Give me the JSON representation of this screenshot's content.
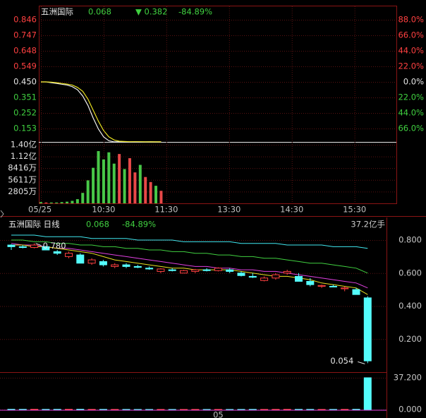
{
  "chart_data": [
    {
      "type": "line",
      "title": "五洲国际",
      "price": "0.068",
      "change": "▼ 0.382",
      "change_pct": "-84.89%",
      "x": [
        0,
        5,
        10,
        15,
        20,
        25,
        30,
        35,
        40,
        45,
        50,
        55,
        60,
        65,
        70,
        75,
        80,
        85,
        90,
        95,
        100,
        105,
        110,
        115
      ],
      "xlim": [
        -2,
        340
      ],
      "ylim": [
        0.054,
        0.846
      ],
      "yticks": [
        0.846,
        0.747,
        0.648,
        0.549,
        {
          "value": 0.45,
          "label": "0.450"
        },
        0.351,
        0.252,
        0.153
      ],
      "y2lim": [
        -88,
        88
      ],
      "y2ticks": [
        {
          "value": 88,
          "label": "88.0%"
        },
        {
          "value": 66,
          "label": "66.0%"
        },
        {
          "value": 44,
          "label": "44.0%"
        },
        {
          "value": 22,
          "label": "22.0%"
        },
        {
          "value": 0,
          "label": "0.0%"
        },
        {
          "value": -22,
          "label": "22.0%"
        },
        {
          "value": -44,
          "label": "44.0%"
        },
        {
          "value": -66,
          "label": "66.0%"
        }
      ],
      "up_color": "#ff4040",
      "flat_color": "#e8e8e8",
      "down_color": "#40d040",
      "series": [
        {
          "color": "#f0f0f0",
          "values": [
            0.45,
            0.45,
            0.445,
            0.44,
            0.435,
            0.43,
            0.42,
            0.4,
            0.36,
            0.3,
            0.22,
            0.15,
            0.1,
            0.075,
            0.068,
            0.069,
            0.068,
            0.068,
            0.069,
            0.068,
            0.068,
            0.069,
            0.068,
            0.068
          ]
        },
        {
          "color": "#e8e020",
          "values": [
            0.45,
            0.45,
            0.448,
            0.445,
            0.44,
            0.436,
            0.43,
            0.415,
            0.39,
            0.34,
            0.27,
            0.2,
            0.14,
            0.1,
            0.08,
            0.072,
            0.07,
            0.069,
            0.069,
            0.069,
            0.068,
            0.068,
            0.068,
            0.068
          ]
        }
      ]
    },
    {
      "type": "bar",
      "x": [
        0,
        5,
        10,
        15,
        20,
        25,
        30,
        35,
        40,
        45,
        50,
        55,
        60,
        65,
        70,
        75,
        80,
        85,
        90,
        95,
        100,
        105,
        110,
        115
      ],
      "xlim": [
        -2,
        340
      ],
      "xticks": [
        {
          "value": 0,
          "label": "05/25"
        },
        {
          "value": 60,
          "label": "10:30"
        },
        {
          "value": 120,
          "label": "11:30"
        },
        {
          "value": 180,
          "label": "13:30"
        },
        {
          "value": 240,
          "label": "14:30"
        },
        {
          "value": 300,
          "label": "15:30"
        }
      ],
      "ylim": [
        0,
        143500000
      ],
      "yticks": [
        {
          "value": 140000000,
          "label": "1.40亿"
        },
        {
          "value": 112000000,
          "label": "1.12亿"
        },
        {
          "value": 84160000,
          "label": "8416万"
        },
        {
          "value": 56110000,
          "label": "5611万"
        },
        {
          "value": 28050000,
          "label": "2805万"
        }
      ],
      "up_color": "#e84848",
      "down_color": "#48c848",
      "values": [
        3000000,
        2000000,
        2000000,
        2000000,
        3000000,
        4000000,
        6000000,
        10000000,
        25000000,
        55000000,
        85000000,
        125000000,
        105000000,
        122000000,
        95000000,
        118000000,
        82000000,
        108000000,
        74000000,
        92000000,
        63000000,
        51000000,
        42000000,
        30000000
      ]
    },
    {
      "type": "candlestick",
      "title": "五洲国际 日线",
      "price": "0.068",
      "change_pct": "-84.89%",
      "volume_label": "37.2亿手",
      "high_label": "0.780",
      "low_label": "0.054",
      "categories": [
        null,
        null,
        null,
        null,
        null,
        null,
        null,
        null,
        null,
        null,
        null,
        null,
        null,
        null,
        null,
        null,
        null,
        null,
        null,
        null,
        null,
        null,
        null,
        null,
        null,
        null,
        null,
        null,
        null,
        null,
        null,
        null
      ],
      "ylim": [
        0,
        0.86
      ],
      "yticks": [
        {
          "value": 0.8,
          "label": "0.800"
        },
        {
          "value": 0.6,
          "label": "0.600"
        },
        {
          "value": 0.4,
          "label": "0.400"
        },
        {
          "value": 0.2,
          "label": "0.200"
        }
      ],
      "up_color": "#ff4040",
      "down_color": "#54fcfc",
      "open": [
        0.77,
        0.76,
        0.755,
        0.76,
        0.73,
        0.7,
        0.71,
        0.66,
        0.67,
        0.64,
        0.65,
        0.64,
        0.63,
        0.61,
        0.62,
        0.6,
        0.61,
        0.62,
        0.615,
        0.62,
        0.6,
        0.58,
        0.555,
        0.57,
        0.6,
        0.58,
        0.55,
        0.52,
        0.52,
        0.505,
        0.5,
        0.45
      ],
      "high": [
        0.775,
        0.77,
        0.78,
        0.765,
        0.74,
        0.73,
        0.72,
        0.69,
        0.68,
        0.66,
        0.66,
        0.65,
        0.64,
        0.63,
        0.63,
        0.62,
        0.625,
        0.63,
        0.635,
        0.63,
        0.61,
        0.6,
        0.58,
        0.6,
        0.62,
        0.6,
        0.57,
        0.53,
        0.53,
        0.52,
        0.51,
        0.46
      ],
      "low": [
        0.74,
        0.75,
        0.75,
        0.74,
        0.71,
        0.69,
        0.66,
        0.65,
        0.64,
        0.63,
        0.63,
        0.63,
        0.62,
        0.6,
        0.61,
        0.6,
        0.6,
        0.61,
        0.61,
        0.6,
        0.58,
        0.57,
        0.55,
        0.56,
        0.59,
        0.55,
        0.52,
        0.51,
        0.515,
        0.49,
        0.47,
        0.054
      ],
      "close": [
        0.76,
        0.755,
        0.77,
        0.74,
        0.72,
        0.72,
        0.66,
        0.68,
        0.65,
        0.65,
        0.64,
        0.635,
        0.625,
        0.625,
        0.615,
        0.615,
        0.62,
        0.615,
        0.63,
        0.61,
        0.585,
        0.575,
        0.57,
        0.59,
        0.61,
        0.55,
        0.53,
        0.525,
        0.518,
        0.51,
        0.47,
        0.068
      ],
      "series": [
        {
          "color": "#40e8f0",
          "values": [
            0.83,
            0.83,
            0.83,
            0.82,
            0.82,
            0.82,
            0.82,
            0.81,
            0.81,
            0.81,
            0.81,
            0.8,
            0.8,
            0.8,
            0.8,
            0.79,
            0.79,
            0.79,
            0.79,
            0.79,
            0.78,
            0.78,
            0.78,
            0.78,
            0.77,
            0.77,
            0.77,
            0.77,
            0.76,
            0.76,
            0.76,
            0.75
          ]
        },
        {
          "color": "#40d040",
          "values": [
            0.8,
            0.8,
            0.79,
            0.79,
            0.78,
            0.78,
            0.77,
            0.77,
            0.76,
            0.76,
            0.75,
            0.75,
            0.74,
            0.74,
            0.73,
            0.73,
            0.72,
            0.72,
            0.71,
            0.71,
            0.7,
            0.7,
            0.69,
            0.69,
            0.68,
            0.67,
            0.66,
            0.66,
            0.65,
            0.64,
            0.63,
            0.6
          ]
        },
        {
          "color": "#e040e0",
          "values": [
            0.78,
            0.77,
            0.77,
            0.76,
            0.75,
            0.75,
            0.74,
            0.73,
            0.72,
            0.71,
            0.7,
            0.69,
            0.68,
            0.67,
            0.66,
            0.65,
            0.64,
            0.64,
            0.63,
            0.63,
            0.62,
            0.62,
            0.61,
            0.61,
            0.6,
            0.59,
            0.58,
            0.57,
            0.56,
            0.55,
            0.54,
            0.51
          ]
        },
        {
          "color": "#e8e020",
          "values": [
            0.77,
            0.77,
            0.76,
            0.76,
            0.75,
            0.74,
            0.73,
            0.72,
            0.7,
            0.68,
            0.67,
            0.66,
            0.65,
            0.64,
            0.63,
            0.63,
            0.62,
            0.62,
            0.62,
            0.62,
            0.61,
            0.6,
            0.59,
            0.58,
            0.58,
            0.57,
            0.56,
            0.54,
            0.53,
            0.52,
            0.51,
            0.47
          ]
        }
      ]
    },
    {
      "type": "bar",
      "categories": [
        null,
        null,
        null,
        null,
        null,
        null,
        null,
        null,
        null,
        null,
        null,
        null,
        null,
        null,
        null,
        null,
        null,
        null,
        "05",
        null,
        null,
        null,
        null,
        null,
        null,
        null,
        null,
        null,
        null,
        null,
        null,
        null
      ],
      "ylim": [
        0,
        37.2
      ],
      "yticks": [
        {
          "value": 37.2,
          "label": "37.200"
        },
        {
          "value": 0,
          "label": "0.000"
        }
      ],
      "values": [
        0.3,
        0.25,
        0.3,
        0.2,
        0.25,
        0.3,
        0.35,
        0.2,
        0.2,
        0.15,
        0.15,
        0.1,
        0.1,
        0.15,
        0.1,
        0.1,
        0.15,
        0.1,
        0.15,
        0.1,
        0.15,
        0.2,
        0.15,
        0.2,
        0.25,
        0.2,
        0.2,
        0.15,
        0.15,
        0.2,
        0.3,
        37.2
      ]
    }
  ]
}
